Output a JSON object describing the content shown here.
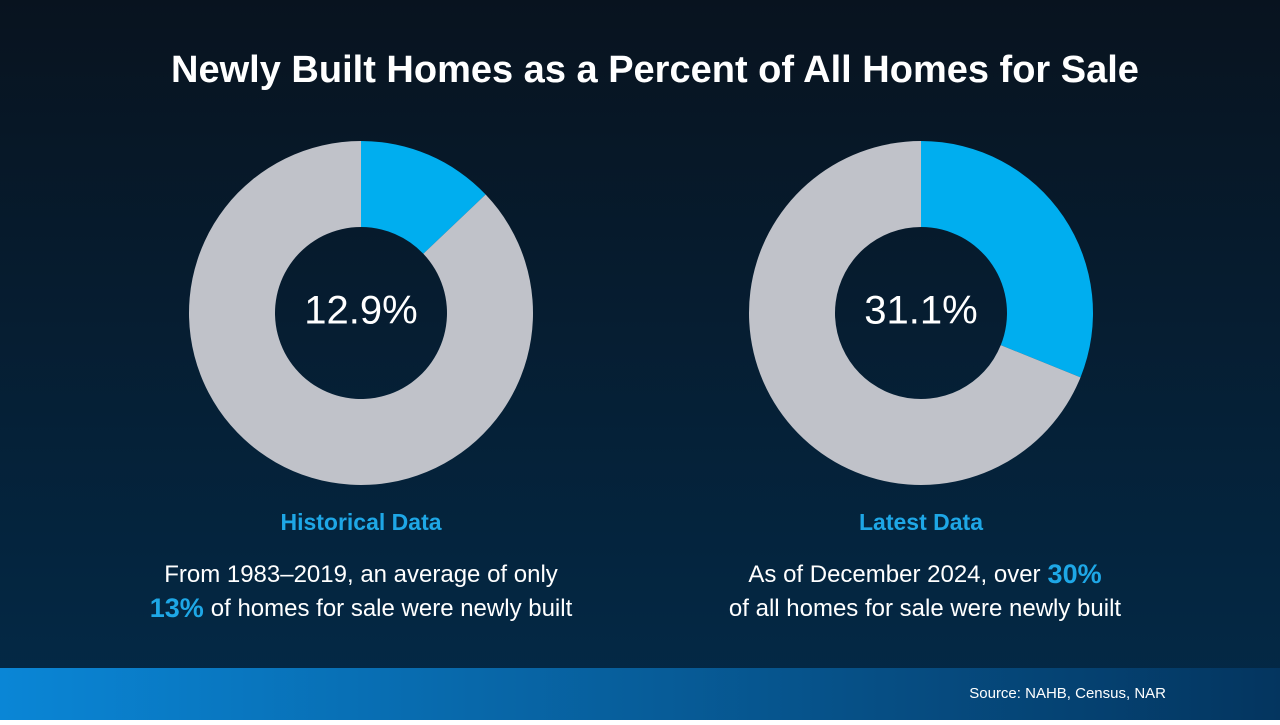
{
  "title": "Newly Built Homes as a Percent of All Homes for Sale",
  "source": "Source: NAHB, Census, NAR",
  "chart_data": [
    {
      "type": "pie",
      "donut": true,
      "values": [
        12.9,
        87.1
      ],
      "value_labels": [
        "12.9%",
        null
      ],
      "colors": [
        "#00aeef",
        "#c0c2c9"
      ],
      "heading": "Historical Data",
      "lines": [
        [
          {
            "text": "From 1983–2019, an average of only",
            "emphasis": false
          }
        ],
        [
          {
            "text": "13%",
            "emphasis": true
          },
          {
            "text": "of homes for sale were newly built",
            "emphasis": false
          }
        ]
      ]
    },
    {
      "type": "pie",
      "donut": true,
      "values": [
        31.1,
        68.9
      ],
      "value_labels": [
        "31.1%",
        null
      ],
      "colors": [
        "#00aeef",
        "#c0c2c9"
      ],
      "heading": "Latest Data",
      "lines": [
        [
          {
            "text": "As of December 2024, over",
            "emphasis": false
          },
          {
            "text": "30%",
            "emphasis": true
          }
        ],
        [
          {
            "text": "of all homes for sale were newly built",
            "emphasis": false
          }
        ]
      ]
    }
  ]
}
